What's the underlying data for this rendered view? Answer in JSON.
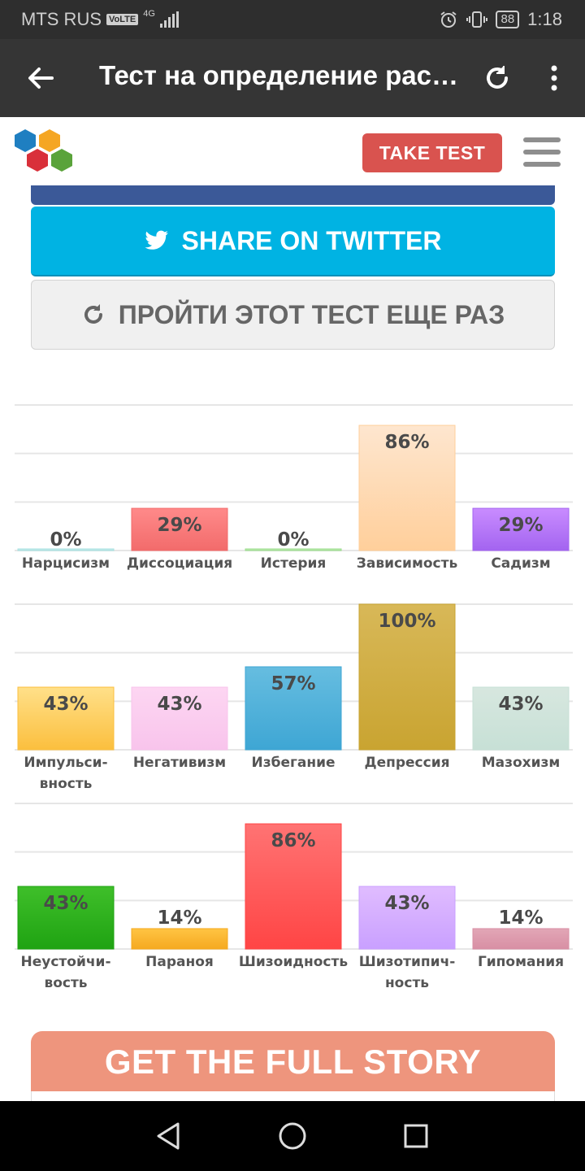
{
  "status_bar": {
    "carrier": "MTS RUS",
    "volte": "VoLTE",
    "network": "4G",
    "battery": "88",
    "time": "1:18"
  },
  "toolbar": {
    "title": "Тест на определение рас…"
  },
  "header": {
    "take_test_label": "TAKE TEST"
  },
  "share": {
    "twitter_label": "SHARE ON TWITTER",
    "retake_label": "ПРОЙТИ ЭТОТ ТЕСТ ЕЩЕ РАЗ"
  },
  "cta": {
    "label": "GET THE FULL STORY"
  },
  "chart_data": [
    {
      "type": "bar",
      "ylim": [
        0,
        100
      ],
      "categories": [
        [
          "Нарцисизм"
        ],
        [
          "Диссоциация"
        ],
        [
          "Истерия"
        ],
        [
          "Зависимость"
        ],
        [
          "Садизм"
        ]
      ],
      "values": [
        0,
        29,
        0,
        86,
        29
      ],
      "labels": [
        "0%",
        "29%",
        "0%",
        "86%",
        "29%"
      ],
      "colors": [
        [
          "#d8f3f3",
          "#a8e0e0"
        ],
        [
          "#ff8a8a",
          "#f26b6b"
        ],
        [
          "#d4f5cc",
          "#9bdc8c"
        ],
        [
          "#fee6cf",
          "#ffcf9b"
        ],
        [
          "#c98cff",
          "#a364f0"
        ]
      ]
    },
    {
      "type": "bar",
      "ylim": [
        0,
        100
      ],
      "categories": [
        [
          "Импульси-",
          "вность"
        ],
        [
          "Негативизм"
        ],
        [
          "Избегание"
        ],
        [
          "Депрессия"
        ],
        [
          "Мазохизм"
        ]
      ],
      "values": [
        43,
        43,
        57,
        100,
        43
      ],
      "labels": [
        "43%",
        "43%",
        "57%",
        "100%",
        "43%"
      ],
      "colors": [
        [
          "#ffe089",
          "#fbbf3e"
        ],
        [
          "#fdd6f2",
          "#f8c4ec"
        ],
        [
          "#66bde0",
          "#3ea6d4"
        ],
        [
          "#d8b858",
          "#c9a431"
        ],
        [
          "#d7e7df",
          "#c7e0d6"
        ]
      ]
    },
    {
      "type": "bar",
      "ylim": [
        0,
        100
      ],
      "categories": [
        [
          "Неустойчи-",
          "вость"
        ],
        [
          "Параноя"
        ],
        [
          "Шизоидность"
        ],
        [
          "Шизотипич-",
          "ность"
        ],
        [
          "Гипомания"
        ]
      ],
      "values": [
        43,
        14,
        86,
        43,
        14
      ],
      "labels": [
        "43%",
        "14%",
        "86%",
        "43%",
        "14%"
      ],
      "colors": [
        [
          "#3fbf2a",
          "#1fa312"
        ],
        [
          "#ffc443",
          "#f5a920"
        ],
        [
          "#ff7373",
          "#ff4545"
        ],
        [
          "#e0bcff",
          "#c9a0ff"
        ],
        [
          "#e2a6b6",
          "#d88fa4"
        ]
      ]
    }
  ]
}
